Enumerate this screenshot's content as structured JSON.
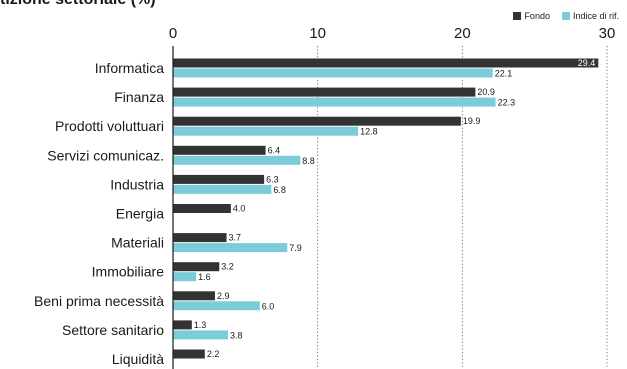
{
  "chart_data": {
    "type": "bar",
    "orientation": "horizontal",
    "title": "tizione settoriale (%)",
    "categories": [
      "Informatica",
      "Finanza",
      "Prodotti voluttuari",
      "Servizi comunicaz.",
      "Industria",
      "Energia",
      "Materiali",
      "Immobiliare",
      "Beni prima necessità",
      "Settore sanitario",
      "Liquidità"
    ],
    "series": [
      {
        "name": "Fondo",
        "color": "#333333",
        "values": [
          29.4,
          20.9,
          19.9,
          6.4,
          6.3,
          4.0,
          3.7,
          3.2,
          2.9,
          1.3,
          2.2
        ],
        "labels": [
          "29.4",
          "20.9",
          "19.9",
          "6.4",
          "6.3",
          "4.0",
          "3.7",
          "3.2",
          "2.9",
          "1.3",
          "2.2"
        ]
      },
      {
        "name": "Indice di rif.",
        "color": "#7ccbd9",
        "values": [
          22.1,
          22.3,
          12.8,
          8.8,
          6.8,
          null,
          7.9,
          1.6,
          6.0,
          3.8,
          null
        ],
        "labels": [
          "22.1",
          "22.3",
          "12.8",
          "8.8",
          "6.8",
          "",
          "7.9",
          "1.6",
          "6.0",
          "3.8",
          ""
        ]
      }
    ],
    "xlim": [
      0,
      30
    ],
    "xticks": [
      0,
      10,
      20,
      30
    ],
    "tick_labels": [
      "0",
      "10",
      "20",
      "30"
    ],
    "grid": "vertical-dotted",
    "legend_position": "top-right"
  }
}
